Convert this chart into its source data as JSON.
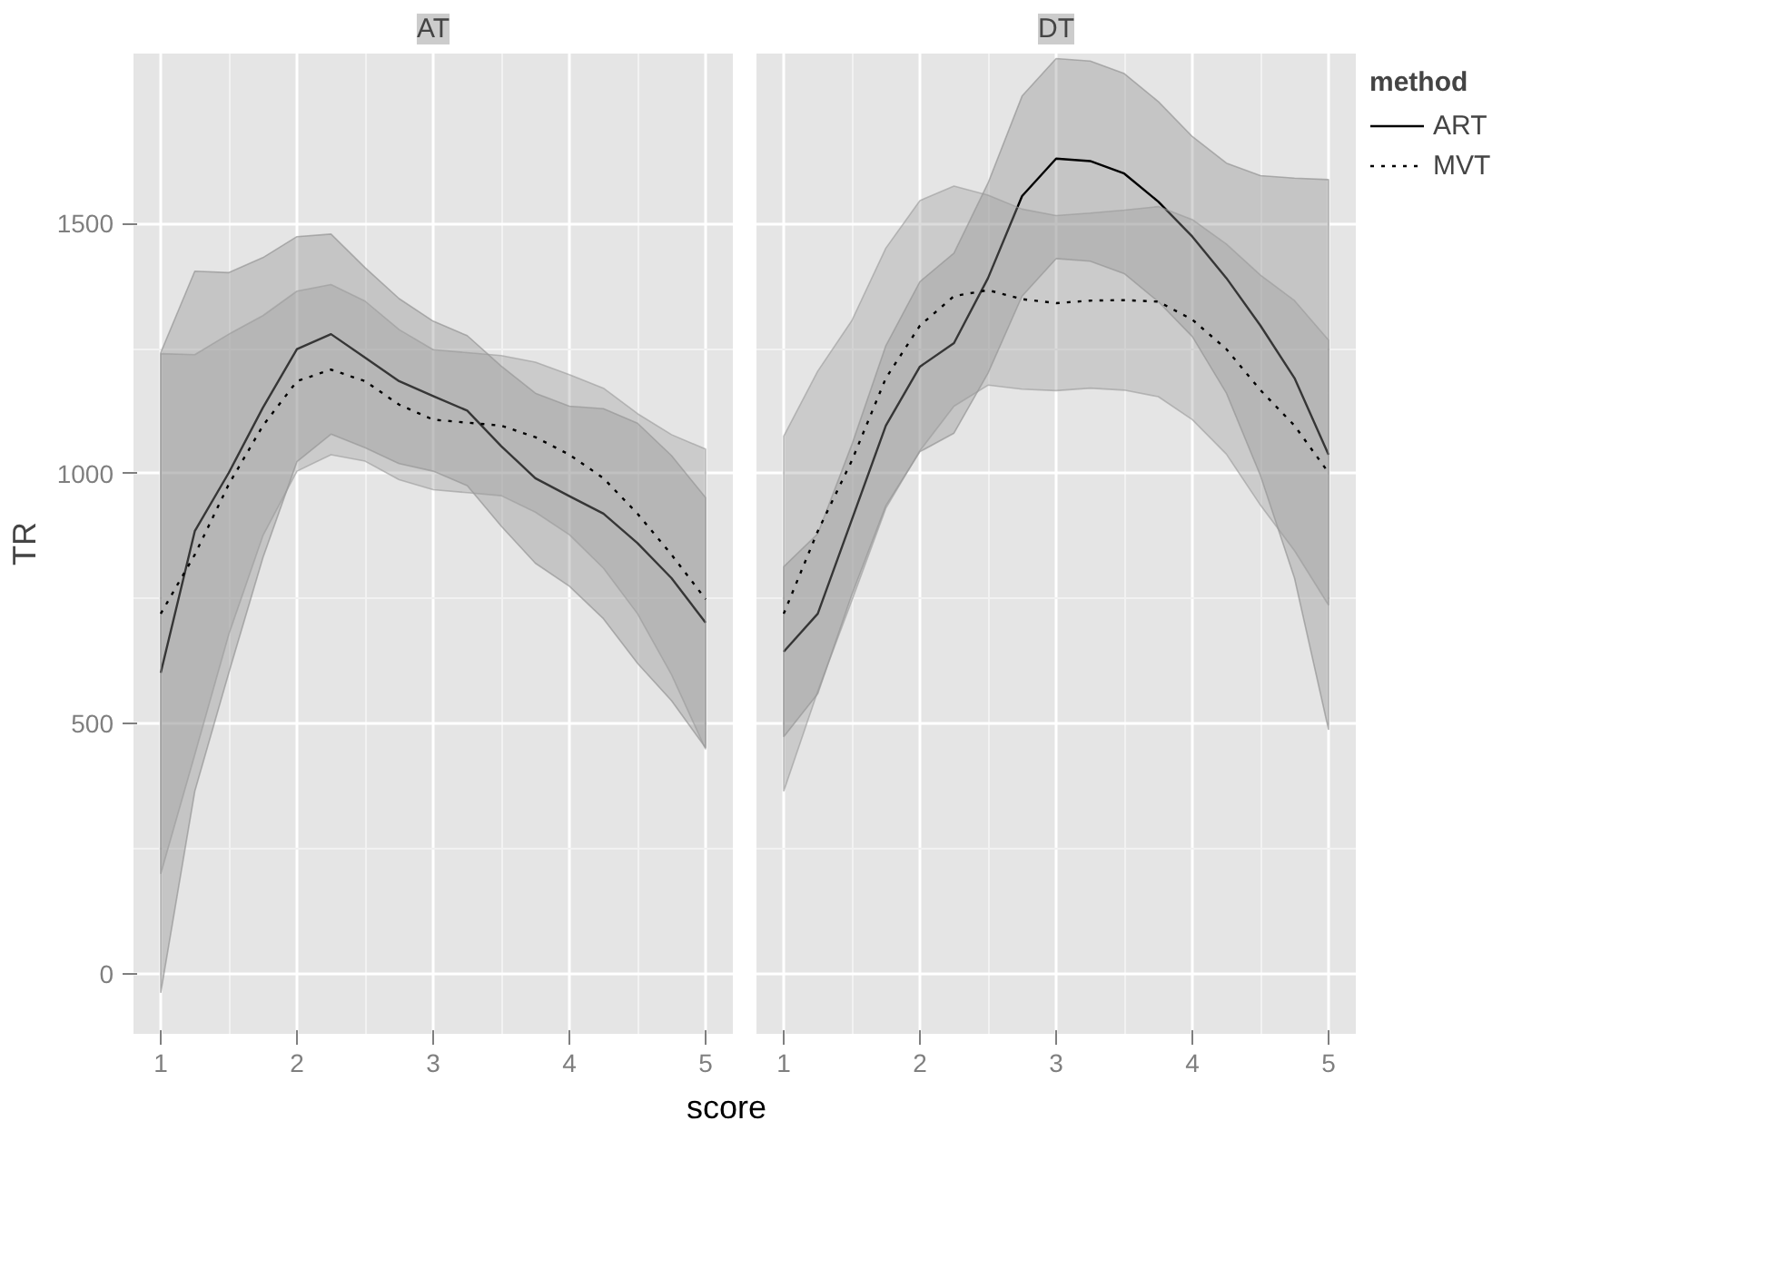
{
  "chart_data": [
    {
      "type": "line",
      "title": "AT",
      "ylabel": "TR",
      "xlabel": "score",
      "xlim": [
        0.8,
        5.2
      ],
      "ylim": [
        -120,
        1840
      ],
      "xticks": [
        1,
        2,
        3,
        4,
        5
      ],
      "yticks": [
        0,
        500,
        1000,
        1500
      ],
      "grid": true,
      "legend": false,
      "x": [
        1,
        1.25,
        1.5,
        1.75,
        2,
        2.25,
        2.5,
        2.75,
        3,
        3.25,
        3.5,
        3.75,
        4,
        4.25,
        4.5,
        4.75,
        5
      ],
      "series": [
        {
          "color": "#000000",
          "line_style": "solid",
          "values": [
            602,
            885,
            1002,
            1132,
            1249,
            1279,
            1232,
            1185,
            1155,
            1126,
            1055,
            991,
            955,
            920,
            861,
            791,
            702
          ],
          "lower": [
            -38,
            365,
            602,
            832,
            1024,
            1079,
            1052,
            1020,
            1005,
            976,
            895,
            821,
            775,
            710,
            621,
            546,
            452
          ],
          "upper": [
            1242,
            1405,
            1402,
            1432,
            1474,
            1479,
            1412,
            1350,
            1305,
            1276,
            1215,
            1161,
            1135,
            1130,
            1101,
            1036,
            952
          ]
        },
        {
          "color": "#000000",
          "line_style": "dotted",
          "values": [
            720,
            838,
            979,
            1096,
            1185,
            1208,
            1185,
            1138,
            1108,
            1102,
            1096,
            1073,
            1038,
            991,
            920,
            838,
            749
          ],
          "lower": [
            200,
            438,
            679,
            876,
            1005,
            1038,
            1025,
            988,
            968,
            962,
            956,
            923,
            878,
            811,
            720,
            598,
            449
          ],
          "upper": [
            1240,
            1238,
            1279,
            1316,
            1365,
            1378,
            1345,
            1288,
            1248,
            1242,
            1236,
            1223,
            1198,
            1171,
            1120,
            1078,
            1049
          ]
        }
      ]
    },
    {
      "type": "line",
      "title": "DT",
      "xlim": [
        0.8,
        5.2
      ],
      "ylim": [
        -120,
        1840
      ],
      "xticks": [
        1,
        2,
        3,
        4,
        5
      ],
      "yticks": [
        0,
        500,
        1000,
        1500
      ],
      "grid": true,
      "tick_labels": "x",
      "legend": "right",
      "legend_title": "method",
      "x": [
        1,
        1.25,
        1.5,
        1.75,
        2,
        2.25,
        2.5,
        2.75,
        3,
        3.25,
        3.5,
        3.75,
        4,
        4.25,
        4.5,
        4.75,
        5
      ],
      "series": [
        {
          "name": "ART",
          "color": "#000000",
          "line_style": "solid",
          "values": [
            644,
            720,
            908,
            1096,
            1214,
            1261,
            1391,
            1555,
            1630,
            1625,
            1600,
            1544,
            1474,
            1391,
            1296,
            1191,
            1038
          ],
          "lower": [
            474,
            560,
            758,
            936,
            1044,
            1081,
            1201,
            1355,
            1430,
            1425,
            1400,
            1344,
            1274,
            1161,
            996,
            791,
            488
          ],
          "upper": [
            814,
            880,
            1058,
            1256,
            1384,
            1441,
            1581,
            1755,
            1830,
            1825,
            1800,
            1744,
            1674,
            1621,
            1596,
            1591,
            1588
          ]
        },
        {
          "name": "MVT",
          "color": "#000000",
          "line_style": "dotted",
          "values": [
            720,
            885,
            1026,
            1191,
            1296,
            1355,
            1367,
            1349,
            1341,
            1346,
            1347,
            1344,
            1308,
            1249,
            1167,
            1096,
            1002
          ],
          "lower": [
            365,
            565,
            746,
            931,
            1046,
            1135,
            1177,
            1169,
            1166,
            1171,
            1167,
            1154,
            1108,
            1039,
            937,
            846,
            737
          ],
          "upper": [
            1075,
            1205,
            1306,
            1451,
            1546,
            1575,
            1557,
            1529,
            1516,
            1521,
            1527,
            1534,
            1508,
            1459,
            1397,
            1346,
            1267
          ]
        }
      ]
    }
  ]
}
